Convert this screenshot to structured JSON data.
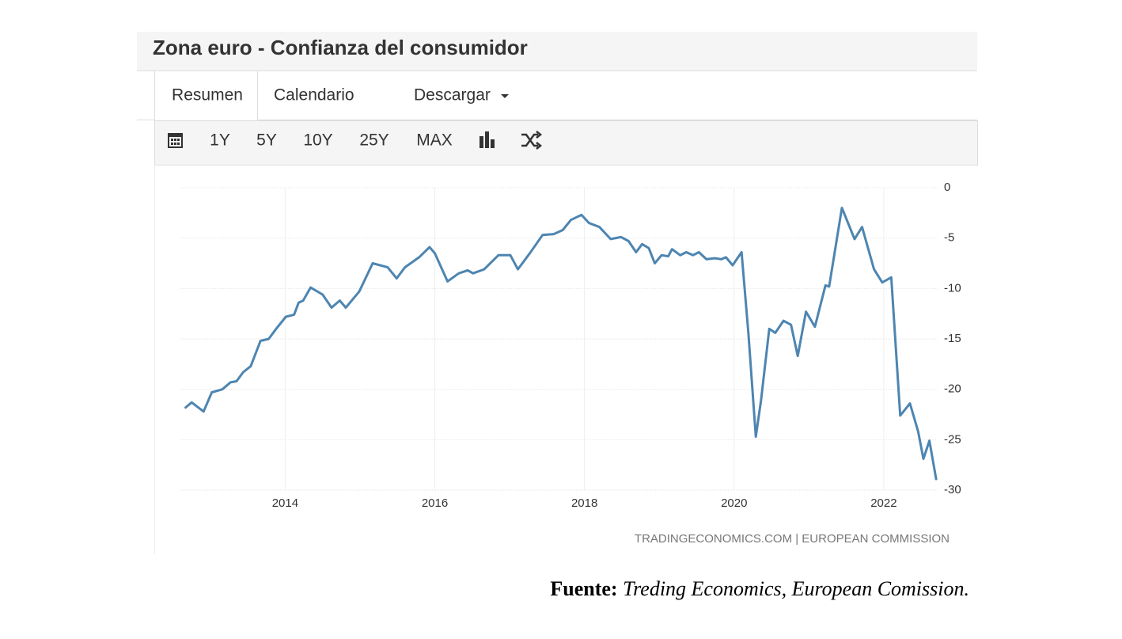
{
  "header": {
    "title": "Zona euro - Confianza del consumidor"
  },
  "tabs": [
    "Resumen",
    "Calendario",
    "Descargar"
  ],
  "toolbar": [
    "1Y",
    "5Y",
    "10Y",
    "25Y",
    "MAX"
  ],
  "chart_data": {
    "type": "line",
    "color": "#4d85b1",
    "x": [
      2012.67,
      2012.75,
      2012.91,
      2013.02,
      2013.16,
      2013.27,
      2013.35,
      2013.44,
      2013.54,
      2013.67,
      2013.78,
      2013.88,
      2014.01,
      2014.12,
      2014.18,
      2014.24,
      2014.34,
      2014.5,
      2014.62,
      2014.73,
      2014.81,
      2014.99,
      2015.17,
      2015.37,
      2015.49,
      2015.6,
      2015.79,
      2015.93,
      2016.0,
      2016.17,
      2016.32,
      2016.44,
      2016.51,
      2016.66,
      2016.85,
      2017.01,
      2017.11,
      2017.27,
      2017.44,
      2017.59,
      2017.71,
      2017.82,
      2017.96,
      2018.06,
      2018.2,
      2018.35,
      2018.49,
      2018.59,
      2018.69,
      2018.77,
      2018.86,
      2018.94,
      2019.03,
      2019.12,
      2019.17,
      2019.28,
      2019.36,
      2019.45,
      2019.53,
      2019.63,
      2019.74,
      2019.83,
      2019.89,
      2019.98,
      2020.1,
      2020.19,
      2020.29,
      2020.36,
      2020.47,
      2020.55,
      2020.66,
      2020.76,
      2020.85,
      2020.96,
      2021.08,
      2021.22,
      2021.27,
      2021.44,
      2021.61,
      2021.71,
      2021.87,
      2021.98,
      2022.1,
      2022.22,
      2022.35,
      2022.46,
      2022.53,
      2022.61,
      2022.7
    ],
    "values": [
      -21.8,
      -21.3,
      -22.2,
      -20.3,
      -20.0,
      -19.3,
      -19.2,
      -18.3,
      -17.7,
      -15.2,
      -15.0,
      -14.0,
      -12.8,
      -12.6,
      -11.4,
      -11.2,
      -9.9,
      -10.6,
      -11.9,
      -11.2,
      -11.9,
      -10.3,
      -7.5,
      -7.9,
      -9.0,
      -7.9,
      -6.9,
      -5.9,
      -6.5,
      -9.3,
      -8.5,
      -8.2,
      -8.5,
      -8.1,
      -6.7,
      -6.7,
      -8.1,
      -6.5,
      -4.7,
      -4.6,
      -4.2,
      -3.2,
      -2.7,
      -3.5,
      -3.9,
      -5.1,
      -4.9,
      -5.3,
      -6.4,
      -5.6,
      -6.0,
      -7.5,
      -6.7,
      -6.8,
      -6.1,
      -6.7,
      -6.4,
      -6.7,
      -6.4,
      -7.1,
      -7.0,
      -7.1,
      -6.9,
      -7.7,
      -6.4,
      -14.4,
      -24.7,
      -21.1,
      -14.0,
      -14.4,
      -13.2,
      -13.6,
      -16.7,
      -12.3,
      -13.8,
      -9.7,
      -9.8,
      -2.0,
      -5.1,
      -3.9,
      -8.1,
      -9.4,
      -8.9,
      -22.6,
      -21.4,
      -24.2,
      -26.9,
      -25.1,
      -28.9
    ],
    "xlim": [
      2012.6,
      2022.72
    ],
    "ylim": [
      -30,
      0
    ],
    "xticks": [
      2014,
      2016,
      2018,
      2020,
      2022
    ],
    "yticks": [
      0,
      -5,
      -10,
      -15,
      -20,
      -25,
      -30
    ],
    "grid": true
  },
  "watermark": "TRADINGECONOMICS.COM | EUROPEAN COMMISSION",
  "source": {
    "label": "Fuente:",
    "text": "Treding Economics, European Comission."
  }
}
